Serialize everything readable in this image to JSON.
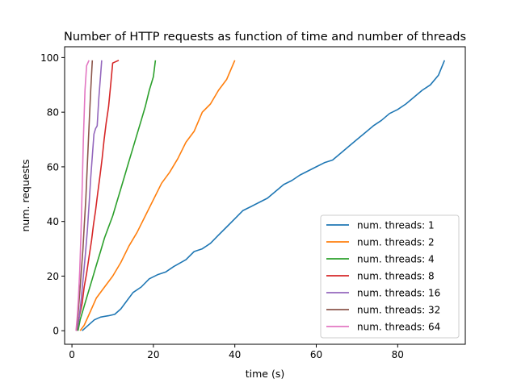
{
  "chart_data": {
    "type": "line",
    "title": "Number of HTTP requests as function of time and number of threads",
    "xlabel": "time (s)",
    "ylabel": "num. requests",
    "xlim": [
      -1.8,
      96.6
    ],
    "ylim": [
      -4.95,
      103.95
    ],
    "xticks": [
      0,
      20,
      40,
      60,
      80
    ],
    "yticks": [
      0,
      20,
      40,
      60,
      80,
      100
    ],
    "grid": false,
    "legend_position": "lower-right",
    "series": [
      {
        "name": "num. threads: 1",
        "color": "#1f77b4",
        "x": [
          2.5,
          5.5,
          7.0,
          9.0,
          10.5,
          12.0,
          13.5,
          15.0,
          17.0,
          19.0,
          21.0,
          23.0,
          25.0,
          28.0,
          30.0,
          32.0,
          34.0,
          36.0,
          38.0,
          40.0,
          42.0,
          44.0,
          46.0,
          48.0,
          50.0,
          52.0,
          54.0,
          56.0,
          58.0,
          60.0,
          62.0,
          64.0,
          66.0,
          68.0,
          70.0,
          72.0,
          74.0,
          76.0,
          78.0,
          80.0,
          82.0,
          84.0,
          86.0,
          88.0,
          90.0,
          91.5
        ],
        "y": [
          0,
          4,
          5,
          5.5,
          6,
          8,
          11,
          14,
          16,
          19,
          20.5,
          21.5,
          23.5,
          26,
          29,
          30,
          32,
          35,
          38,
          41,
          44,
          45.5,
          47,
          48.5,
          51,
          53.5,
          55,
          57,
          58.5,
          60,
          61.5,
          62.5,
          65,
          67.5,
          70,
          72.5,
          75,
          77,
          79.5,
          81,
          83,
          85.5,
          88,
          90,
          93.5,
          99
        ]
      },
      {
        "name": "num. threads: 2",
        "color": "#ff7f0e",
        "x": [
          2.0,
          3.0,
          4.5,
          6.0,
          8.0,
          10.0,
          12.0,
          14.0,
          16.0,
          18.0,
          20.0,
          22.0,
          24.0,
          26.0,
          28.0,
          30.0,
          32.0,
          34.0,
          36.0,
          38.0,
          40.0
        ],
        "y": [
          0,
          2,
          7,
          12,
          16,
          20,
          25,
          31,
          36,
          42,
          48,
          54,
          58,
          63,
          69,
          73,
          80,
          83,
          88,
          92,
          99
        ]
      },
      {
        "name": "num. threads: 4",
        "color": "#2ca02c",
        "x": [
          1.5,
          2.0,
          3.0,
          4.0,
          5.0,
          6.0,
          7.0,
          8.0,
          9.0,
          10.0,
          11.0,
          12.0,
          13.0,
          14.0,
          15.0,
          16.0,
          17.0,
          18.0,
          19.0,
          20.0,
          20.5
        ],
        "y": [
          0,
          4,
          9,
          14,
          19,
          24,
          29,
          34,
          38,
          42,
          47,
          52,
          57,
          62,
          67,
          72,
          77,
          82,
          88,
          93,
          99
        ]
      },
      {
        "name": "num. threads: 8",
        "color": "#d62728",
        "x": [
          1.2,
          1.8,
          2.5,
          3.0,
          3.6,
          4.2,
          4.8,
          5.3,
          5.8,
          6.3,
          6.9,
          7.4,
          7.9,
          8.4,
          9.0,
          9.5,
          10.0,
          11.5
        ],
        "y": [
          0,
          5,
          10,
          16,
          21,
          27,
          33,
          39,
          44,
          50,
          57,
          63,
          70,
          76,
          82,
          90,
          98,
          99
        ]
      },
      {
        "name": "num. threads: 16",
        "color": "#9467bd",
        "x": [
          1.2,
          1.8,
          2.3,
          2.8,
          3.3,
          3.8,
          4.2,
          4.6,
          5.0,
          5.4,
          5.8,
          6.2,
          6.6,
          7.0,
          7.3
        ],
        "y": [
          0,
          5,
          12,
          20,
          28,
          37,
          46,
          56,
          64,
          72,
          74,
          75,
          85,
          93,
          99
        ]
      },
      {
        "name": "num. threads: 32",
        "color": "#8c564b",
        "x": [
          1.1,
          1.5,
          1.9,
          2.3,
          2.7,
          3.0,
          3.4,
          3.7,
          4.0,
          4.3,
          4.6,
          5.0
        ],
        "y": [
          0,
          6,
          14,
          22,
          30,
          38,
          48,
          58,
          68,
          78,
          88,
          99
        ]
      },
      {
        "name": "num. threads: 64",
        "color": "#e377c2",
        "x": [
          1.0,
          1.3,
          1.6,
          1.9,
          2.2,
          2.5,
          2.8,
          3.2,
          3.6,
          4.2
        ],
        "y": [
          0,
          5,
          12,
          22,
          35,
          52,
          70,
          88,
          97,
          99
        ]
      }
    ]
  }
}
